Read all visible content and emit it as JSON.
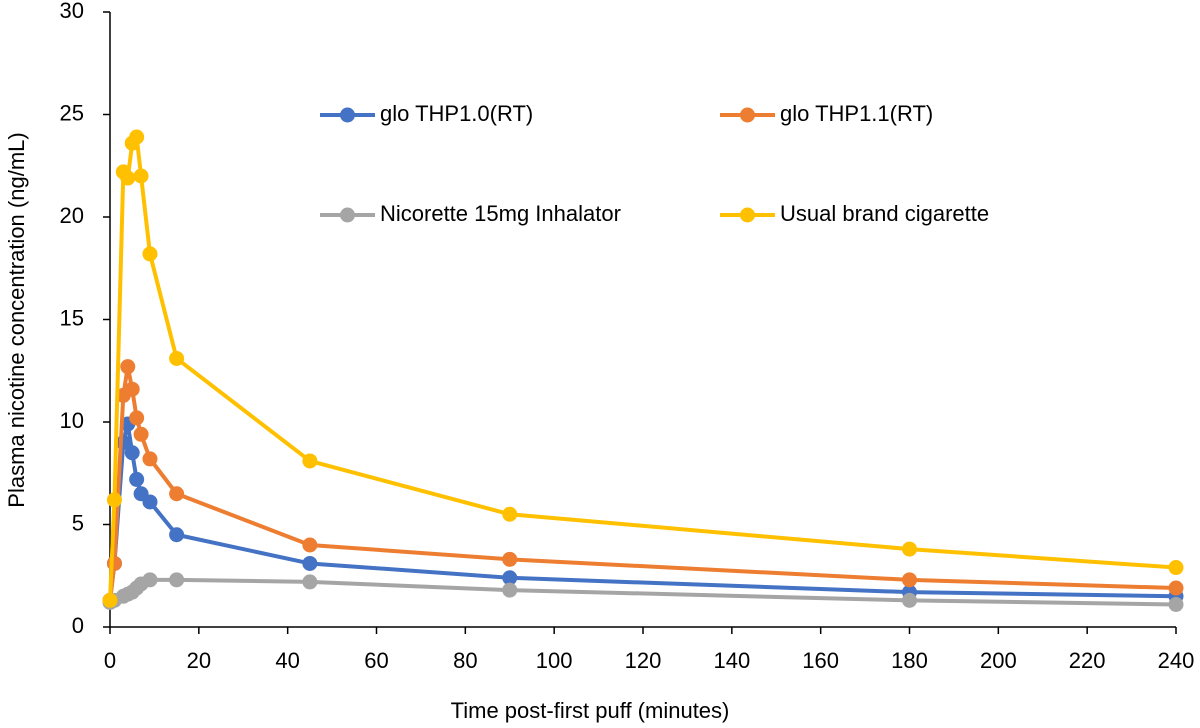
{
  "chart_data": {
    "type": "line",
    "x_label": "Time post-first puff (minutes)",
    "y_label": "Plasma nicotine concentration (ng/mL)",
    "x": [
      0,
      1,
      3,
      4,
      5,
      6,
      7,
      9,
      15,
      45,
      90,
      180,
      240
    ],
    "series": [
      {
        "name": "glo THP1.0(RT)",
        "color": "#4472c4",
        "values": [
          1.3,
          3.1,
          9.0,
          9.9,
          8.5,
          7.2,
          6.5,
          6.1,
          4.5,
          3.1,
          2.4,
          1.7,
          1.5
        ]
      },
      {
        "name": "glo THP1.1(RT)",
        "color": "#ed7d31",
        "values": [
          1.3,
          3.1,
          11.3,
          12.7,
          11.6,
          10.2,
          9.4,
          8.2,
          6.5,
          4.0,
          3.3,
          2.3,
          1.9
        ]
      },
      {
        "name": "Nicorette 15mg Inhalator",
        "color": "#a5a5a5",
        "values": [
          1.2,
          1.3,
          1.5,
          1.6,
          1.7,
          1.9,
          2.1,
          2.3,
          2.3,
          2.2,
          1.8,
          1.3,
          1.1
        ]
      },
      {
        "name": "Usual brand cigarette",
        "color": "#ffc000",
        "values": [
          1.3,
          6.2,
          22.2,
          21.9,
          23.6,
          23.9,
          22.0,
          18.2,
          13.1,
          8.1,
          5.5,
          3.8,
          2.9
        ]
      }
    ],
    "xlim": [
      0,
      240
    ],
    "xticks": [
      0,
      20,
      40,
      60,
      80,
      100,
      120,
      140,
      160,
      180,
      200,
      220,
      240
    ],
    "ylim": [
      0,
      30
    ],
    "yticks": [
      0,
      5,
      10,
      15,
      20,
      25,
      30
    ],
    "grid": false,
    "legend": "top"
  }
}
